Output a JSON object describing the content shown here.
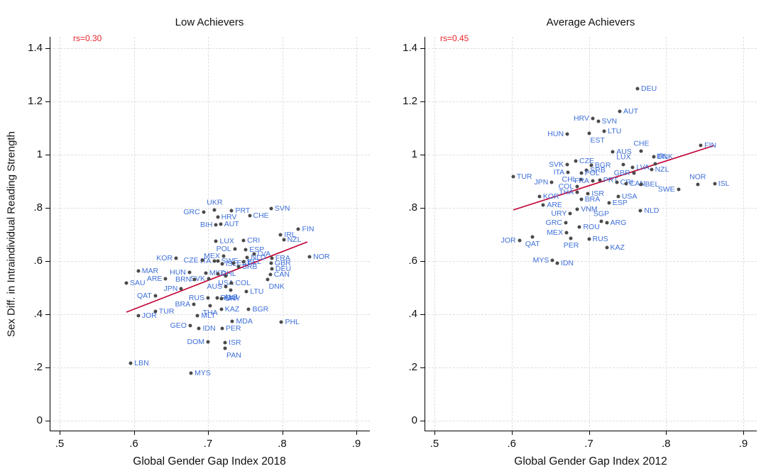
{
  "figure": {
    "y_axis_title": "Sex Diff. in Intraindividual Reading Strength",
    "background": "#ffffff",
    "colors": {
      "country_label_blue": "#3E6FD9",
      "dot_gray": "#4a4a4a",
      "trend_line_red": "#c10536",
      "rs_text_red": "#e8242a",
      "grid_gray": "#dedede",
      "axis_black": "#000000"
    }
  },
  "chart_data": [
    {
      "type": "scatter",
      "title": "Low Achievers",
      "annotation": "rs=0.30",
      "xlabel": "Global Gender Gap Index 2018",
      "ylabel": "Sex Diff. in Intraindividual Reading Strength",
      "xlim": [
        0.487,
        0.918
      ],
      "ylim": [
        -0.04,
        1.47
      ],
      "grid": true,
      "x_tick_labels": [
        ".5",
        ".6",
        ".7",
        ".8",
        ".9"
      ],
      "x_tick_values": [
        0.5,
        0.6,
        0.7,
        0.8,
        0.9
      ],
      "y_tick_labels": [
        "0",
        ".2",
        ".4",
        ".6",
        ".8",
        "1",
        "1.2",
        "1.4"
      ],
      "y_tick_values": [
        0,
        0.2,
        0.4,
        0.6,
        0.8,
        1.0,
        1.2,
        1.4
      ],
      "trend_line": {
        "x1": 0.59,
        "y1": 0.408,
        "x2": 0.834,
        "y2": 0.672
      },
      "points": [
        [
          "GRC",
          0.694,
          0.784,
          "l"
        ],
        [
          "UKR",
          0.709,
          0.792,
          "a"
        ],
        [
          "PRT",
          0.732,
          0.789,
          "r"
        ],
        [
          "SVN",
          0.785,
          0.797,
          "r"
        ],
        [
          "HRV",
          0.713,
          0.765,
          "r"
        ],
        [
          "CHE",
          0.756,
          0.771,
          "r"
        ],
        [
          "BIH",
          0.711,
          0.736,
          "l"
        ],
        [
          "AUT",
          0.717,
          0.739,
          "r"
        ],
        [
          "FIN",
          0.822,
          0.72,
          "r"
        ],
        [
          "IRL",
          0.798,
          0.699,
          "r"
        ],
        [
          "NZL",
          0.802,
          0.68,
          "r"
        ],
        [
          "NOR",
          0.837,
          0.616,
          "r"
        ],
        [
          "LUX",
          0.711,
          0.675,
          "r"
        ],
        [
          "CRI",
          0.748,
          0.677,
          "r"
        ],
        [
          "POL",
          0.736,
          0.645,
          "l"
        ],
        [
          "ESP",
          0.751,
          0.643,
          "r"
        ],
        [
          "MEX",
          0.721,
          0.62,
          "l"
        ],
        [
          "ITA",
          0.709,
          0.601,
          "l"
        ],
        [
          "NLD",
          0.753,
          0.613,
          "r"
        ],
        [
          "LVA",
          0.762,
          0.627,
          "r"
        ],
        [
          "SWE",
          0.713,
          0.6,
          "r"
        ],
        [
          "ISL",
          0.719,
          0.589,
          "r"
        ],
        [
          "EST",
          0.734,
          0.592,
          "r"
        ],
        [
          "SRB",
          0.741,
          0.578,
          "r"
        ],
        [
          "BEL",
          0.748,
          0.597,
          "r"
        ],
        [
          "FRA",
          0.786,
          0.611,
          "r"
        ],
        [
          "GBR",
          0.785,
          0.592,
          "r"
        ],
        [
          "DEU",
          0.786,
          0.571,
          "r"
        ],
        [
          "CAN",
          0.784,
          0.549,
          "r"
        ],
        [
          "DNK",
          0.78,
          0.532,
          "br"
        ],
        [
          "CZE",
          0.692,
          0.603,
          "l"
        ],
        [
          "KOR",
          0.657,
          0.611,
          "l"
        ],
        [
          "HUN",
          0.675,
          0.557,
          "l"
        ],
        [
          "MKD",
          0.697,
          0.556,
          "r"
        ],
        [
          "CHL",
          0.713,
          0.553,
          "r"
        ],
        [
          "USA",
          0.724,
          0.545,
          "b"
        ],
        [
          "SVK",
          0.701,
          0.534,
          "l"
        ],
        [
          "BRN",
          0.682,
          0.531,
          "l"
        ],
        [
          "MAR",
          0.606,
          0.563,
          "r"
        ],
        [
          "ARE",
          0.643,
          0.533,
          "l"
        ],
        [
          "SAU",
          0.59,
          0.517,
          "r"
        ],
        [
          "JPN",
          0.664,
          0.496,
          "l"
        ],
        [
          "QAT",
          0.629,
          0.469,
          "l"
        ],
        [
          "AUS",
          0.724,
          0.503,
          "l"
        ],
        [
          "COL",
          0.732,
          0.517,
          "r"
        ],
        [
          "ALB",
          0.731,
          0.492,
          "b"
        ],
        [
          "LTU",
          0.752,
          0.485,
          "r"
        ],
        [
          "RUS",
          0.7,
          0.461,
          "l"
        ],
        [
          "ROU",
          0.712,
          0.461,
          "r"
        ],
        [
          "URY",
          0.718,
          0.458,
          "r"
        ],
        [
          "BRA",
          0.681,
          0.437,
          "l"
        ],
        [
          "THA",
          0.703,
          0.432,
          "b"
        ],
        [
          "KAZ",
          0.718,
          0.419,
          "r"
        ],
        [
          "BGR",
          0.755,
          0.419,
          "r"
        ],
        [
          "TUR",
          0.629,
          0.411,
          "r"
        ],
        [
          "JOR",
          0.606,
          0.395,
          "r"
        ],
        [
          "MLT",
          0.686,
          0.395,
          "r"
        ],
        [
          "GEO",
          0.676,
          0.357,
          "l"
        ],
        [
          "MDA",
          0.733,
          0.373,
          "r"
        ],
        [
          "PHL",
          0.799,
          0.371,
          "r"
        ],
        [
          "IDN",
          0.688,
          0.347,
          "r"
        ],
        [
          "PER",
          0.719,
          0.347,
          "r"
        ],
        [
          "DOM",
          0.7,
          0.296,
          "l"
        ],
        [
          "ISR",
          0.723,
          0.293,
          "r"
        ],
        [
          "PAN",
          0.723,
          0.272,
          "br"
        ],
        [
          "LBN",
          0.596,
          0.216,
          "r"
        ],
        [
          "MYS",
          0.677,
          0.179,
          "r"
        ]
      ]
    },
    {
      "type": "scatter",
      "title": "Average Achievers",
      "annotation": "rs=0.45",
      "xlabel": "Global Gender Gap Index 2012",
      "ylabel": "Sex Diff. in Intraindividual Reading Strength",
      "xlim": [
        0.487,
        0.918
      ],
      "ylim": [
        -0.04,
        1.47
      ],
      "grid": true,
      "x_tick_labels": [
        ".5",
        ".6",
        ".7",
        ".8",
        ".9"
      ],
      "x_tick_values": [
        0.5,
        0.6,
        0.7,
        0.8,
        0.9
      ],
      "y_tick_labels": [
        "0",
        ".2",
        ".4",
        ".6",
        ".8",
        "1",
        "1.2",
        "1.4"
      ],
      "y_tick_values": [
        0,
        0.2,
        0.4,
        0.6,
        0.8,
        1.0,
        1.2,
        1.4
      ],
      "trend_line": {
        "x1": 0.602,
        "y1": 0.792,
        "x2": 0.862,
        "y2": 1.034
      },
      "points": [
        [
          "DEU",
          0.763,
          1.248,
          "r"
        ],
        [
          "AUT",
          0.74,
          1.163,
          "r"
        ],
        [
          "HRV",
          0.705,
          1.136,
          "l"
        ],
        [
          "SVN",
          0.712,
          1.125,
          "r"
        ],
        [
          "LTU",
          0.72,
          1.088,
          "r"
        ],
        [
          "HUN",
          0.672,
          1.077,
          "l"
        ],
        [
          "EST",
          0.7,
          1.08,
          "br"
        ],
        [
          "AUS",
          0.731,
          1.011,
          "r"
        ],
        [
          "CHE",
          0.768,
          1.013,
          "a"
        ],
        [
          "DNK",
          0.784,
          0.992,
          "r"
        ],
        [
          "FIN",
          0.845,
          1.035,
          "r"
        ],
        [
          "LUX",
          0.745,
          0.963,
          "a"
        ],
        [
          "LVA",
          0.757,
          0.952,
          "r"
        ],
        [
          "IRL",
          0.786,
          0.966,
          "ar"
        ],
        [
          "NZL",
          0.781,
          0.944,
          "r"
        ],
        [
          "GBR",
          0.758,
          0.931,
          "l"
        ],
        [
          "CZE",
          0.683,
          0.975,
          "r"
        ],
        [
          "SVK",
          0.672,
          0.962,
          "l"
        ],
        [
          "BGR",
          0.703,
          0.96,
          "r"
        ],
        [
          "SRB",
          0.697,
          0.941,
          "r"
        ],
        [
          "ITA",
          0.673,
          0.934,
          "l"
        ],
        [
          "POL",
          0.69,
          0.93,
          "r"
        ],
        [
          "CHL",
          0.689,
          0.907,
          "l"
        ],
        [
          "FRA",
          0.705,
          0.901,
          "l"
        ],
        [
          "PRT",
          0.714,
          0.905,
          "r"
        ],
        [
          "CRI",
          0.736,
          0.896,
          "r"
        ],
        [
          "CAN",
          0.748,
          0.891,
          "r"
        ],
        [
          "BEL",
          0.768,
          0.888,
          "r"
        ],
        [
          "SWE",
          0.816,
          0.869,
          "l"
        ],
        [
          "NOR",
          0.841,
          0.888,
          "a"
        ],
        [
          "ISL",
          0.863,
          0.891,
          "r"
        ],
        [
          "TUR",
          0.602,
          0.917,
          "r"
        ],
        [
          "JPN",
          0.652,
          0.896,
          "l"
        ],
        [
          "COL",
          0.685,
          0.88,
          "l"
        ],
        [
          "THA",
          0.685,
          0.859,
          "l"
        ],
        [
          "KOR",
          0.636,
          0.843,
          "r"
        ],
        [
          "ISR",
          0.699,
          0.853,
          "r"
        ],
        [
          "BRA",
          0.69,
          0.832,
          "r"
        ],
        [
          "ARE",
          0.641,
          0.812,
          "r"
        ],
        [
          "USA",
          0.738,
          0.843,
          "r"
        ],
        [
          "ESP",
          0.726,
          0.819,
          "r"
        ],
        [
          "NLD",
          0.767,
          0.789,
          "r"
        ],
        [
          "URY",
          0.676,
          0.779,
          "l"
        ],
        [
          "VNM",
          0.685,
          0.795,
          "r"
        ],
        [
          "GRC",
          0.67,
          0.744,
          "l"
        ],
        [
          "SGP",
          0.716,
          0.749,
          "a"
        ],
        [
          "ARG",
          0.723,
          0.744,
          "r"
        ],
        [
          "ROU",
          0.688,
          0.728,
          "r"
        ],
        [
          "MEX",
          0.671,
          0.706,
          "l"
        ],
        [
          "RUS",
          0.7,
          0.683,
          "r"
        ],
        [
          "JOR",
          0.61,
          0.677,
          "l"
        ],
        [
          "QAT",
          0.627,
          0.69,
          "b"
        ],
        [
          "PER",
          0.677,
          0.686,
          "b"
        ],
        [
          "KAZ",
          0.723,
          0.651,
          "r"
        ],
        [
          "MYS",
          0.653,
          0.603,
          "l"
        ],
        [
          "IDN",
          0.659,
          0.592,
          "r"
        ]
      ]
    }
  ]
}
